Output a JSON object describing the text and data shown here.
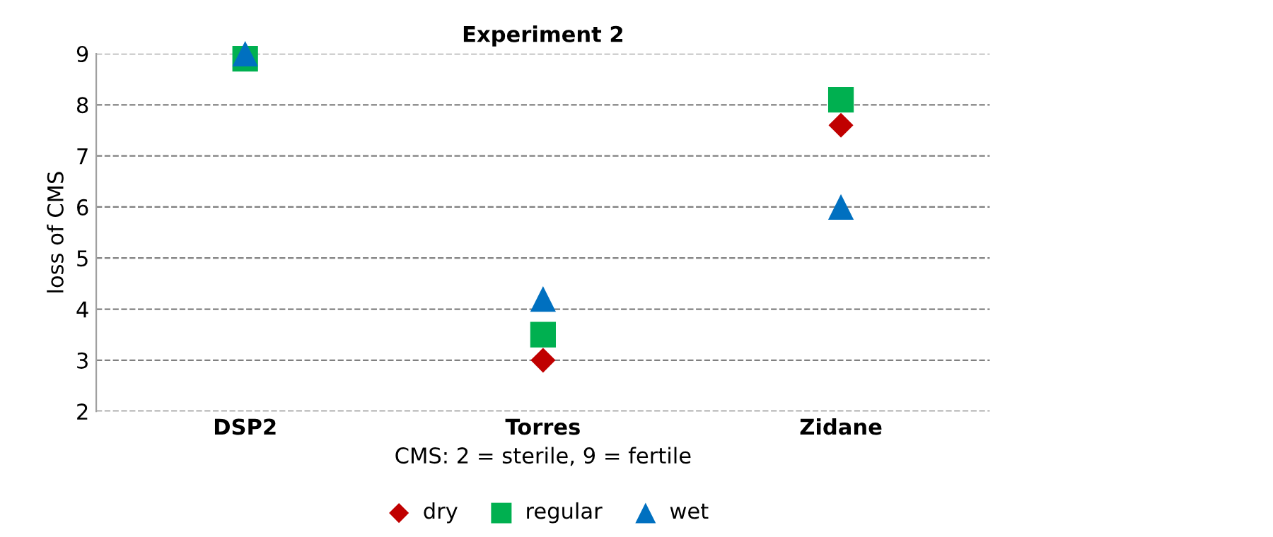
{
  "chart_data": {
    "type": "scatter",
    "title": "Experiment 2",
    "xlabel": "CMS: 2 = sterile, 9 = fertile",
    "ylabel": "loss of CMS",
    "categories": [
      "DSP2",
      "Torres",
      "Zidane"
    ],
    "series": [
      {
        "name": "dry",
        "color": "#c00000",
        "marker": "diamond",
        "values": [
          null,
          3,
          7.6
        ]
      },
      {
        "name": "regular",
        "color": "#00b050",
        "marker": "square",
        "values": [
          8.9,
          3.5,
          8.1
        ]
      },
      {
        "name": "wet",
        "color": "#0070c0",
        "marker": "triangle",
        "values": [
          9,
          4.2,
          6.0
        ]
      }
    ],
    "ylim": [
      2,
      9
    ],
    "yticks": [
      2,
      3,
      4,
      5,
      6,
      7,
      8,
      9
    ],
    "grid": "y",
    "legend": "bottom"
  }
}
